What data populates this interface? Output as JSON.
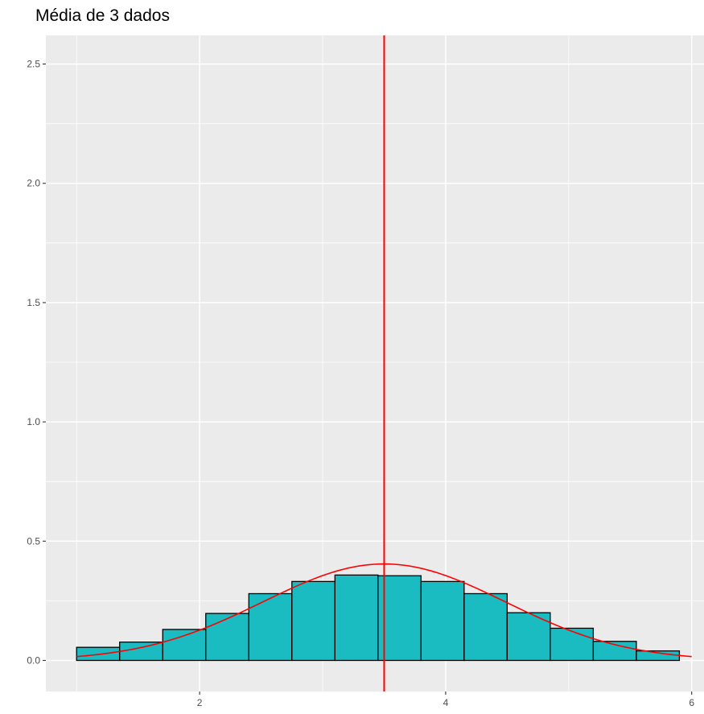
{
  "chart_data": {
    "type": "bar",
    "title": "Média de 3 dados",
    "xlabel": "",
    "ylabel": "",
    "xlim": [
      0.75,
      6.1
    ],
    "ylim": [
      -0.13,
      2.62
    ],
    "x_ticks": [
      2,
      4,
      6
    ],
    "y_ticks": [
      0.0,
      0.5,
      1.0,
      1.5,
      2.0,
      2.5
    ],
    "x_tick_labels": [
      "2",
      "4",
      "6"
    ],
    "y_tick_labels": [
      "0.0",
      "0.5",
      "1.0",
      "1.5",
      "2.0",
      "2.5"
    ],
    "grid": true,
    "bins": [
      {
        "x0": 1.0,
        "x1": 1.35,
        "value": 0.055
      },
      {
        "x0": 1.35,
        "x1": 1.7,
        "value": 0.077
      },
      {
        "x0": 1.7,
        "x1": 2.05,
        "value": 0.13
      },
      {
        "x0": 2.05,
        "x1": 2.4,
        "value": 0.197
      },
      {
        "x0": 2.4,
        "x1": 2.75,
        "value": 0.28
      },
      {
        "x0": 2.75,
        "x1": 3.1,
        "value": 0.331
      },
      {
        "x0": 3.1,
        "x1": 3.45,
        "value": 0.358
      },
      {
        "x0": 3.45,
        "x1": 3.8,
        "value": 0.355
      },
      {
        "x0": 3.8,
        "x1": 4.15,
        "value": 0.331
      },
      {
        "x0": 4.15,
        "x1": 4.5,
        "value": 0.28
      },
      {
        "x0": 4.5,
        "x1": 4.85,
        "value": 0.2
      },
      {
        "x0": 4.85,
        "x1": 5.2,
        "value": 0.135
      },
      {
        "x0": 5.2,
        "x1": 5.55,
        "value": 0.08
      },
      {
        "x0": 5.55,
        "x1": 5.9,
        "value": 0.04
      }
    ],
    "mean_line_x": 3.5,
    "normal_curve": {
      "mean": 3.5,
      "sd": 0.986,
      "x_range": [
        1.0,
        6.0
      ]
    },
    "colors": {
      "bar_fill": "#1ABCC2",
      "bar_stroke": "#000000",
      "reference": "#FF0000",
      "panel_bg": "#EBEBEB",
      "grid": "#FFFFFF"
    }
  }
}
